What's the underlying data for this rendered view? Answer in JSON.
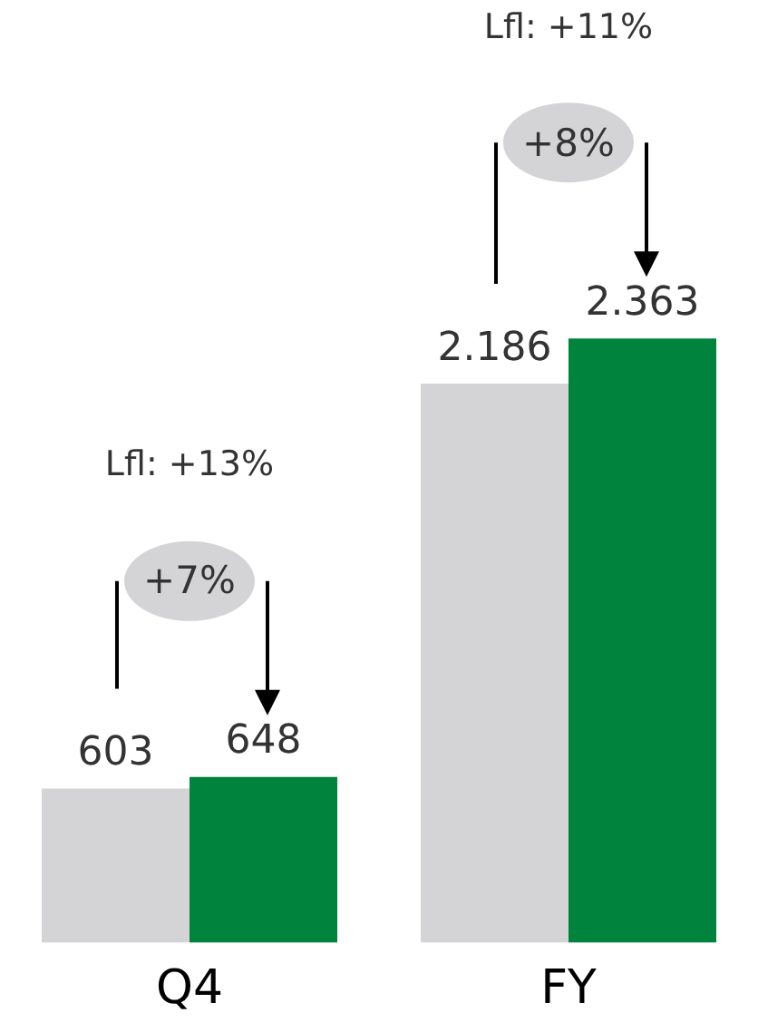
{
  "chart_data": {
    "type": "bar",
    "categories": [
      "Q4",
      "FY"
    ],
    "series": [
      {
        "color": "#d4d4d6",
        "values": [
          603,
          2186
        ],
        "value_labels": [
          "603",
          "2.186"
        ]
      },
      {
        "color": "#00843d",
        "values": [
          648,
          2363
        ],
        "value_labels": [
          "648",
          "2.363"
        ]
      }
    ],
    "annotations": [
      "Lfl: +13%",
      "+7%",
      "Lfl: +11%",
      "+8%"
    ],
    "grid": false,
    "legend": false,
    "tick_labels": "x"
  }
}
